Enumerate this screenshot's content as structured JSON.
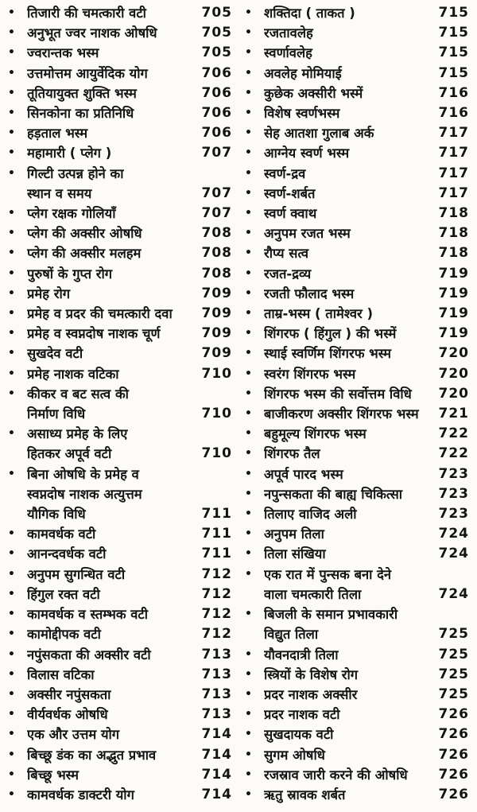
{
  "page": {
    "background_color": "#fcfbf8",
    "text_color": "#141414",
    "bullet_glyph": "•"
  },
  "columns": [
    {
      "name": "left",
      "items": [
        {
          "lines": [
            "तिजारी की चमत्कारी वटी"
          ],
          "page": "705"
        },
        {
          "lines": [
            "अनुभूत ज्वर नाशक ओषधि"
          ],
          "page": "705"
        },
        {
          "lines": [
            "ज्वरान्तक भस्म"
          ],
          "page": "705"
        },
        {
          "lines": [
            "उत्तमोत्तम आयुर्वेदिक योग"
          ],
          "page": "706"
        },
        {
          "lines": [
            "तूतियायुक्त शुक्ति भस्म"
          ],
          "page": "706"
        },
        {
          "lines": [
            "सिनकोना का प्रतिनिधि"
          ],
          "page": "706"
        },
        {
          "lines": [
            "हड़ताल भस्म"
          ],
          "page": "706"
        },
        {
          "lines": [
            "महामारी ( प्लेग )"
          ],
          "page": "707"
        },
        {
          "lines": [
            "गिल्टी उत्पन्न होने का",
            "स्थान व समय"
          ],
          "page": "707"
        },
        {
          "lines": [
            "प्लेग रक्षक गोलियाँ"
          ],
          "page": "707"
        },
        {
          "lines": [
            "प्लेग की अक्सीर ओषधि"
          ],
          "page": "708"
        },
        {
          "lines": [
            "प्लेग की अक्सीर मलहम"
          ],
          "page": "708"
        },
        {
          "lines": [
            "पुरुषों के गुप्त रोग"
          ],
          "page": "708"
        },
        {
          "lines": [
            "प्रमेह रोग"
          ],
          "page": "709"
        },
        {
          "lines": [
            "प्रमेह व प्रदर की चमत्कारी दवा"
          ],
          "page": "709"
        },
        {
          "lines": [
            "प्रमेह व स्वप्नदोष नाशक चूर्ण"
          ],
          "page": "709"
        },
        {
          "lines": [
            "सुखदेव वटी"
          ],
          "page": "709"
        },
        {
          "lines": [
            "प्रमेह नाशक वटिका"
          ],
          "page": "710"
        },
        {
          "lines": [
            "कीकर व बट सत्व की",
            "निर्माण विधि"
          ],
          "page": "710"
        },
        {
          "lines": [
            "असाध्य प्रमेह के लिए",
            "हितकर अपूर्व वटी"
          ],
          "page": "710"
        },
        {
          "lines": [
            "बिना ओषधि के प्रमेह व",
            "स्वप्नदोष नाशक अत्युत्तम",
            "यौगिक विधि"
          ],
          "page": "711"
        },
        {
          "lines": [
            "कामवर्धक वटी"
          ],
          "page": "711"
        },
        {
          "lines": [
            "आनन्दवर्धक वटी"
          ],
          "page": "711"
        },
        {
          "lines": [
            "अनुपम सुगन्धित वटी"
          ],
          "page": "712"
        },
        {
          "lines": [
            "हिंगुल रक्त वटी"
          ],
          "page": "712"
        },
        {
          "lines": [
            "कामवर्धक व स्तम्भक वटी"
          ],
          "page": "712"
        },
        {
          "lines": [
            "कामोद्दीपक वटी"
          ],
          "page": "712"
        },
        {
          "lines": [
            "नपुंसकता की अक्सीर वटी"
          ],
          "page": "713"
        },
        {
          "lines": [
            "विलास वटिका"
          ],
          "page": "713"
        },
        {
          "lines": [
            "अक्सीर नपुंसकता"
          ],
          "page": "713"
        },
        {
          "lines": [
            "वीर्यवर्धक ओषधि"
          ],
          "page": "713"
        },
        {
          "lines": [
            "एक और उत्तम योग"
          ],
          "page": "714"
        },
        {
          "lines": [
            "बिच्छू डंक का अद्भुत प्रभाव"
          ],
          "page": "714"
        },
        {
          "lines": [
            "बिच्छू भस्म"
          ],
          "page": "714"
        },
        {
          "lines": [
            "कामवर्धक डाक्टरी योग"
          ],
          "page": "714"
        }
      ]
    },
    {
      "name": "right",
      "items": [
        {
          "lines": [
            "शक्तिदा ( ताकत )"
          ],
          "page": "715"
        },
        {
          "lines": [
            "रजतावलेह"
          ],
          "page": "715"
        },
        {
          "lines": [
            "स्वर्णावलेह"
          ],
          "page": "715"
        },
        {
          "lines": [
            "अवलेह मोमियाई"
          ],
          "page": "715"
        },
        {
          "lines": [
            "कुछेक अक्सीरी भस्में"
          ],
          "page": "716"
        },
        {
          "lines": [
            "विशेष स्वर्णभस्म"
          ],
          "page": "716"
        },
        {
          "lines": [
            "सेह आतशा गुलाब अर्क"
          ],
          "page": "717"
        },
        {
          "lines": [
            "आग्नेय स्वर्ण भस्म"
          ],
          "page": "717"
        },
        {
          "lines": [
            "स्वर्ण-द्रव"
          ],
          "page": "717"
        },
        {
          "lines": [
            "स्वर्ण-शर्बत"
          ],
          "page": "717"
        },
        {
          "lines": [
            "स्वर्ण क्वाथ"
          ],
          "page": "718"
        },
        {
          "lines": [
            "अनुपम रजत भस्म"
          ],
          "page": "718"
        },
        {
          "lines": [
            "रौप्य सत्व"
          ],
          "page": "718"
        },
        {
          "lines": [
            "रजत-द्रव्य"
          ],
          "page": "719"
        },
        {
          "lines": [
            "रजती फौलाद भस्म"
          ],
          "page": "719"
        },
        {
          "lines": [
            "ताम्र-भस्म ( तामेश्वर )"
          ],
          "page": "719"
        },
        {
          "lines": [
            "शिंगरफ ( हिंगुल ) की भस्में"
          ],
          "page": "719"
        },
        {
          "lines": [
            "स्थाई स्वर्णिम शिंगरफ भस्म"
          ],
          "page": "720"
        },
        {
          "lines": [
            "स्वरंग शिंगरफ भस्म"
          ],
          "page": "720"
        },
        {
          "lines": [
            "शिंगरफ भस्म की सर्वोत्तम विधि"
          ],
          "page": "720"
        },
        {
          "lines": [
            "बाजीकरण अक्सीर शिंगरफ भस्म"
          ],
          "page": "721"
        },
        {
          "lines": [
            "बहुमूल्य शिंगरफ भस्म"
          ],
          "page": "722"
        },
        {
          "lines": [
            "शिंगरफ तैल"
          ],
          "page": "722"
        },
        {
          "lines": [
            "अपूर्व पारद भस्म"
          ],
          "page": "723"
        },
        {
          "lines": [
            "नपुन्सकता की बाह्य चिकित्सा"
          ],
          "page": "723"
        },
        {
          "lines": [
            "तिलाए वाजिद अली"
          ],
          "page": "723"
        },
        {
          "lines": [
            "अनुपम तिला"
          ],
          "page": "724"
        },
        {
          "lines": [
            "तिला संखिया"
          ],
          "page": "724"
        },
        {
          "lines": [
            "एक रात में पुन्सक बना देने",
            "वाला चमत्कारी तिला"
          ],
          "page": "724"
        },
        {
          "lines": [
            "बिजली के समान प्रभावकारी",
            "विद्युत तिला"
          ],
          "page": "725"
        },
        {
          "lines": [
            "यौवनदात्री तिला"
          ],
          "page": "725"
        },
        {
          "lines": [
            "स्त्रियों के विशेष रोग"
          ],
          "page": "725"
        },
        {
          "lines": [
            "प्रदर नाशक अक्सीर"
          ],
          "page": "725"
        },
        {
          "lines": [
            "प्रदर नाशक वटी"
          ],
          "page": "726"
        },
        {
          "lines": [
            "सुखदायक वटी"
          ],
          "page": "726"
        },
        {
          "lines": [
            "सुगम ओषधि"
          ],
          "page": "726"
        },
        {
          "lines": [
            "रजस्राव जारी करने की ओषधि"
          ],
          "page": "726"
        },
        {
          "lines": [
            "ऋतु स्रावक शर्बत"
          ],
          "page": "726"
        }
      ]
    }
  ]
}
